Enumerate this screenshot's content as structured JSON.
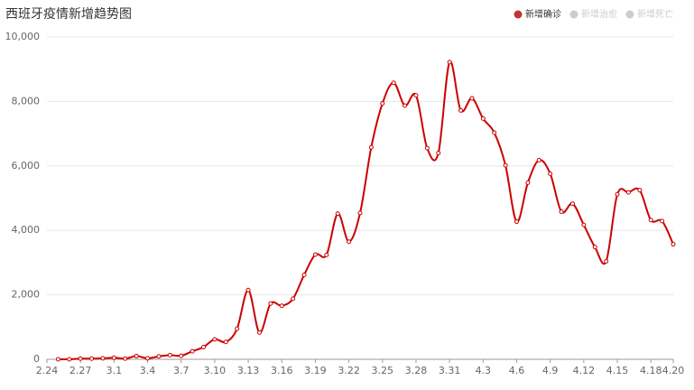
{
  "chart_data": {
    "type": "line",
    "title": "西班牙疫情新增趋势图",
    "legend": [
      {
        "name": "新增确诊",
        "color": "#c23531",
        "active": true
      },
      {
        "name": "新增治愈",
        "color": "#cccccc",
        "active": false
      },
      {
        "name": "新增死亡",
        "color": "#cccccc",
        "active": false
      }
    ],
    "legend_position": "top-right",
    "categories": [
      "2.24",
      null,
      null,
      "2.27",
      null,
      null,
      "3.1",
      null,
      null,
      "3.4",
      null,
      null,
      "3.7",
      null,
      null,
      "3.10",
      null,
      null,
      "3.13",
      null,
      null,
      "3.16",
      null,
      null,
      "3.19",
      null,
      null,
      "3.22",
      null,
      null,
      "3.25",
      null,
      null,
      "3.28",
      null,
      null,
      "3.31",
      null,
      null,
      "4.3",
      null,
      null,
      "4.6",
      null,
      null,
      "4.9",
      null,
      null,
      "4.12",
      null,
      null,
      "4.15",
      null,
      null,
      "4.18",
      null,
      "4.20"
    ],
    "series": [
      {
        "name": "新增确诊",
        "color": "#cc0000",
        "smooth": true,
        "values": [
          null,
          0,
          0,
          20,
          20,
          30,
          50,
          20,
          100,
          30,
          90,
          130,
          110,
          250,
          380,
          620,
          540,
          950,
          2150,
          830,
          1730,
          1660,
          1880,
          2620,
          3250,
          3240,
          4520,
          3650,
          4540,
          6580,
          7940,
          8580,
          7870,
          8190,
          6550,
          6400,
          9220,
          7720,
          8100,
          7470,
          7030,
          6020,
          4270,
          5480,
          6180,
          5760,
          4580,
          4830,
          4170,
          3480,
          3040,
          5120,
          5180,
          5250,
          4320,
          4290,
          3570
        ]
      }
    ],
    "ylim": [
      0,
      10000
    ],
    "yticks": [
      0,
      {
        "value": 2000,
        "label": "2,000"
      },
      {
        "value": 4000,
        "label": "4,000"
      },
      {
        "value": 6000,
        "label": "6,000"
      },
      {
        "value": 8000,
        "label": "8,000"
      },
      {
        "value": 10000,
        "label": "10,000"
      }
    ],
    "grid": true
  }
}
